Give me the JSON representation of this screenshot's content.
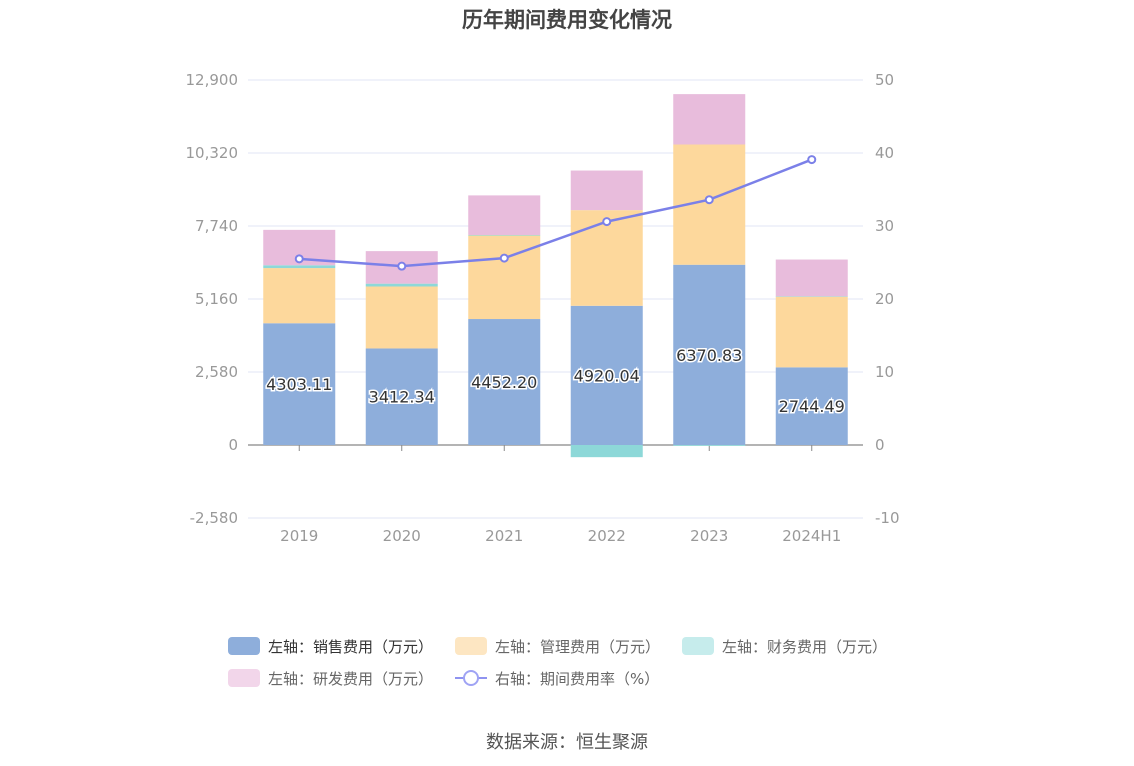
{
  "title": "历年期间费用变化情况",
  "source": "数据来源：恒生聚源",
  "colors": {
    "sales": "#8eaedb",
    "admin": "#fdd89c",
    "finance": "#8dd8d8",
    "rnd": "#e8bcdc",
    "rate": "#7b80e8",
    "grid": "#e2e4f4",
    "axis": "#888888"
  },
  "chart_data": {
    "type": "bar",
    "stacked": true,
    "categories": [
      "2019",
      "2020",
      "2021",
      "2022",
      "2023",
      "2024H1"
    ],
    "y_left": {
      "min": -2580,
      "max": 12900,
      "ticks": [
        -2580,
        0,
        2580,
        5160,
        7740,
        10320,
        12900
      ],
      "tick_labels": [
        "-2,580",
        "0",
        "2,580",
        "5,160",
        "7,740",
        "10,320",
        "12,900"
      ]
    },
    "y_right": {
      "min": -10,
      "max": 50,
      "ticks": [
        -10,
        0,
        10,
        20,
        30,
        40,
        50
      ],
      "tick_labels": [
        "-10",
        "0",
        "10",
        "20",
        "30",
        "40",
        "50"
      ]
    },
    "grid": true,
    "legend_position": "bottom",
    "series": [
      {
        "name": "左轴：销售费用（万元）",
        "key": "sales",
        "axis": "left",
        "kind": "bar",
        "values": [
          4303.11,
          3412.34,
          4452.2,
          4920.04,
          6370.83,
          2744.49
        ],
        "labels": [
          "4303.11",
          "3412.34",
          "4452.20",
          "4920.04",
          "6370.83",
          "2744.49"
        ]
      },
      {
        "name": "左轴：管理费用（万元）",
        "key": "admin",
        "axis": "left",
        "kind": "bar",
        "values": [
          1950,
          2190,
          2950,
          3380,
          4250,
          2500
        ]
      },
      {
        "name": "左轴：财务费用（万元）",
        "key": "finance",
        "axis": "left",
        "kind": "bar",
        "values": [
          100,
          100,
          20,
          -430,
          -30,
          10
        ]
      },
      {
        "name": "左轴：研发费用（万元）",
        "key": "rnd",
        "axis": "left",
        "kind": "bar",
        "values": [
          1250,
          1150,
          1400,
          1400,
          1780,
          1300
        ]
      },
      {
        "name": "右轴：期间费用率（%）",
        "key": "rate",
        "axis": "right",
        "kind": "line",
        "values": [
          25.5,
          24.5,
          25.6,
          30.6,
          33.6,
          39.1
        ]
      }
    ]
  }
}
